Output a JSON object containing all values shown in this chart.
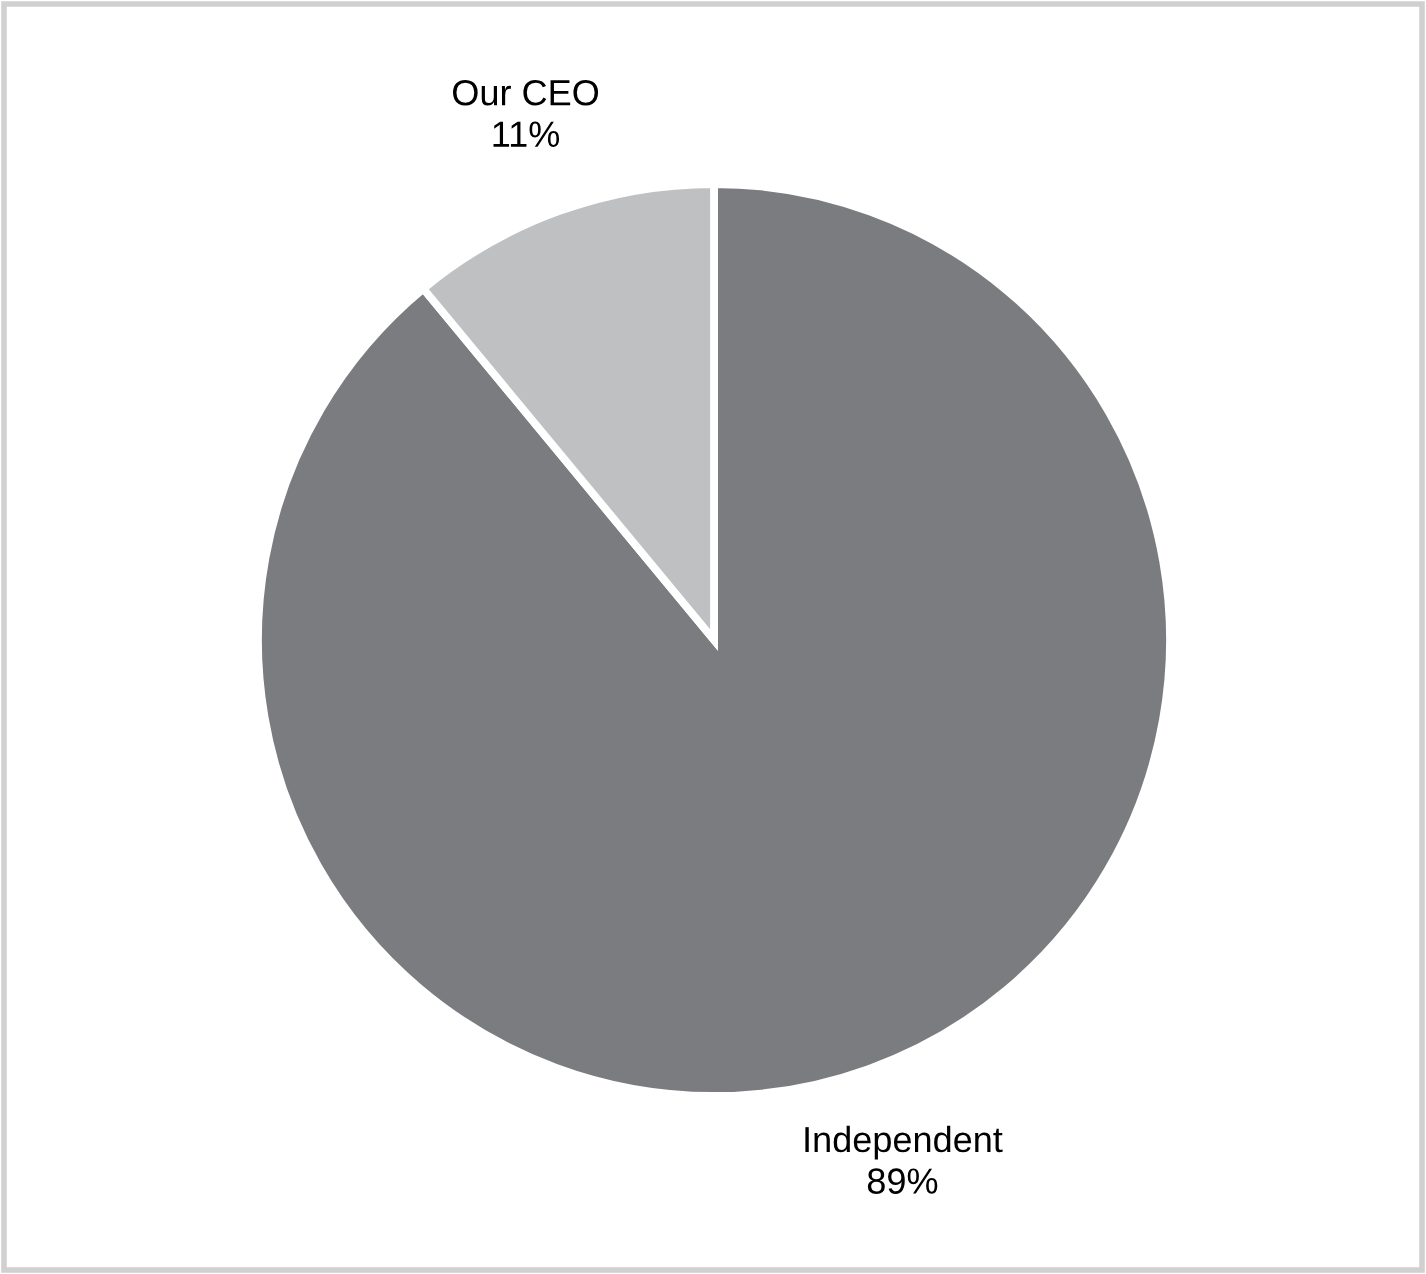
{
  "chart_data": {
    "type": "pie",
    "categories": [
      "Independent",
      "Our CEO"
    ],
    "values": [
      89,
      11
    ],
    "colors": [
      "#7b7c80",
      "#bfc0c2"
    ],
    "value_labels": [
      "89%",
      "11%"
    ],
    "legend": false
  }
}
